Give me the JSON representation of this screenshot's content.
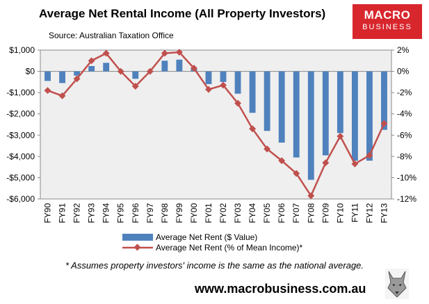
{
  "title": "Average Net Rental Income (All Property Investors)",
  "source": "Source: Australian Taxation Office",
  "logo": {
    "line1": "MACRO",
    "line2": "BUSINESS"
  },
  "footnote": "* Assumes property investors' income is the same as the national average.",
  "url": "www.macrobusiness.com.au",
  "colors": {
    "bars": "#4f81bd",
    "line": "#c0504d",
    "logo_bg": "#d8262d",
    "plot_bg": "#efefef"
  },
  "chart_data": {
    "type": "bar",
    "title": "Average Net Rental Income (All Property Investors)",
    "categories": [
      "FY90",
      "FY91",
      "FY92",
      "FY93",
      "FY94",
      "FY95",
      "FY96",
      "FY97",
      "FY98",
      "FY99",
      "FY00",
      "FY01",
      "FY02",
      "FY03",
      "FY04",
      "FY05",
      "FY06",
      "FY07",
      "FY08",
      "FY09",
      "FY10",
      "FY11",
      "FY12",
      "FY13"
    ],
    "series": [
      {
        "name": "Average Net Rent ($ Value)",
        "type": "bar",
        "axis": "left",
        "values": [
          -450,
          -550,
          -200,
          250,
          400,
          0,
          -350,
          0,
          500,
          550,
          150,
          -600,
          -500,
          -1050,
          -1950,
          -2800,
          -3350,
          -4050,
          -5100,
          -3950,
          -2900,
          -4200,
          -4200,
          -2750
        ]
      },
      {
        "name": "Average Net Rent (% of Mean Income)*",
        "type": "line",
        "axis": "right",
        "values": [
          -1.8,
          -2.3,
          -0.7,
          1.0,
          1.7,
          0.0,
          -1.4,
          0.0,
          1.7,
          1.8,
          0.3,
          -1.7,
          -1.3,
          -3.0,
          -5.4,
          -7.3,
          -8.4,
          -9.6,
          -11.7,
          -8.6,
          -6.1,
          -8.7,
          -7.9,
          -4.9
        ]
      }
    ],
    "y_left": {
      "min": -6000,
      "max": 1000,
      "ticks": [
        1000,
        0,
        -1000,
        -2000,
        -3000,
        -4000,
        -5000,
        -6000
      ],
      "tick_labels": [
        "$1,000",
        "$0",
        "-$1,000",
        "-$2,000",
        "-$3,000",
        "-$4,000",
        "-$5,000",
        "-$6,000"
      ]
    },
    "y_right": {
      "min": -12,
      "max": 2,
      "ticks": [
        2,
        0,
        -2,
        -4,
        -6,
        -8,
        -10,
        -12
      ],
      "tick_labels": [
        "2%",
        "0%",
        "-2%",
        "-4%",
        "-6%",
        "-8%",
        "-10%",
        "-12%"
      ]
    },
    "legend_position": "bottom",
    "grid": false
  }
}
